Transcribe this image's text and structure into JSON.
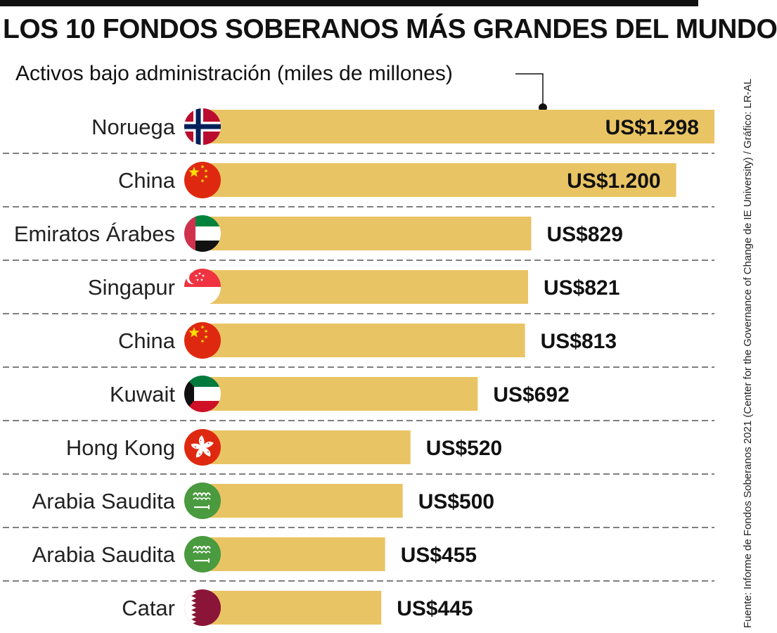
{
  "header": {
    "title": "LOS 10 FONDOS SOBERANOS MÁS GRANDES DEL MUNDO",
    "subtitle": "Activos bajo administración (miles de millones)"
  },
  "source": "Fuente: Informe de Fondos Soberanos 2021 (Center for the Governance of Change de IE University) / Gráfico: LR-AL",
  "colors": {
    "bar": "#E9C464",
    "divider": "#555555",
    "text": "#111111"
  },
  "chart_data": {
    "type": "bar",
    "orientation": "horizontal",
    "title": "LOS 10 FONDOS SOBERANOS MÁS GRANDES DEL MUNDO",
    "ylabel": "Activos bajo administración (miles de millones)",
    "xlim": [
      0,
      1298
    ],
    "categories": [
      "Noruega",
      "China",
      "Emiratos Árabes",
      "Singapur",
      "China",
      "Kuwait",
      "Hong Kong",
      "Arabia Saudita",
      "Arabia Saudita",
      "Catar"
    ],
    "values": [
      1298,
      1200,
      829,
      821,
      813,
      692,
      520,
      500,
      455,
      445
    ],
    "value_labels": [
      "US$1.298",
      "US$1.200",
      "US$829",
      "US$821",
      "US$813",
      "US$692",
      "US$520",
      "US$500",
      "US$455",
      "US$445"
    ],
    "flags": [
      "norway-flag-icon",
      "china-flag-icon",
      "uae-flag-icon",
      "singapore-flag-icon",
      "china-flag-icon",
      "kuwait-flag-icon",
      "hong-kong-flag-icon",
      "saudi-arabia-flag-icon",
      "saudi-arabia-flag-icon",
      "qatar-flag-icon"
    ]
  }
}
